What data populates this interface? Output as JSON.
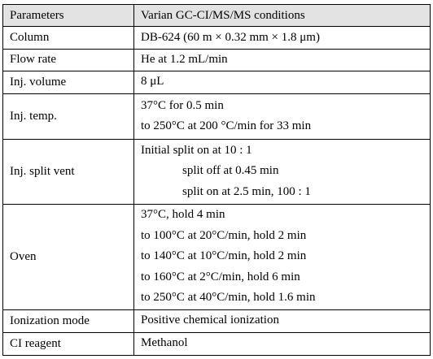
{
  "table": {
    "header": [
      "Parameters",
      "Varian GC-CI/MS/MS conditions"
    ],
    "rows": [
      [
        "Column",
        [
          "DB-624  (60  m × 0.32  mm × 1.8  μm)"
        ]
      ],
      [
        "Flow rate",
        [
          "He at 1.2 mL/min"
        ]
      ],
      [
        "Inj. volume",
        [
          "8  μL"
        ]
      ],
      [
        "Inj. temp.",
        [
          "37°C  for  0.5  min",
          "to  250°C  at  200  °C/min  for  33  min"
        ]
      ],
      [
        "Inj. split vent",
        [
          "Initial  split  on  at  10  :  1",
          "split  off  at  0.45  min",
          "split  on  at  2.5  min,  100  :  1"
        ]
      ],
      [
        "Oven",
        [
          "37°C,  hold  4  min",
          "to  100°C  at  20°C/min,  hold  2  min",
          "to  140°C  at  10°C/min,  hold  2  min",
          "to  160°C  at  2°C/min,  hold  6  min",
          "to  250°C  at  40°C/min,  hold  1.6  min"
        ]
      ],
      [
        "Ionization mode",
        [
          "Positive chemical ionization"
        ]
      ],
      [
        "CI reagent",
        [
          "Methanol"
        ]
      ]
    ]
  }
}
